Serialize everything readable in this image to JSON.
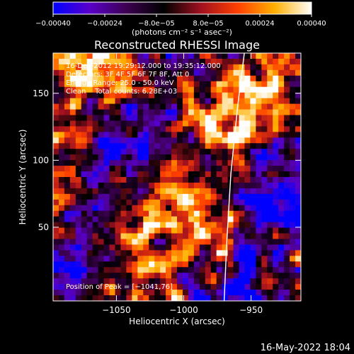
{
  "chart_data": {
    "type": "heatmap",
    "title": "Reconstructed RHESSI Image",
    "xlabel": "Heliocentric X (arcsec)",
    "ylabel": "Heliocentric Y (arcsec)",
    "xlim": [
      -1097,
      -913
    ],
    "ylim": [
      -5,
      180
    ],
    "x_ticks": [
      -1050,
      -1000,
      -950
    ],
    "x_tick_labels": [
      "−1050",
      "−1000",
      "−950"
    ],
    "y_ticks": [
      50,
      100,
      150
    ],
    "y_tick_labels": [
      "50",
      "100",
      "150"
    ],
    "colorbar": {
      "range": [
        -0.0004,
        0.0004
      ],
      "ticks": [
        -0.0004,
        -0.00024,
        -8e-05,
        8e-05,
        0.00024,
        0.0004
      ],
      "tick_labels": [
        "−0.00040",
        "−0.00024",
        "−8.0e−05",
        "8.0e−05",
        "0.00024",
        "0.00040"
      ],
      "unit_label": "(photons cm⁻² s⁻¹ asec⁻²)",
      "colormap": [
        "#0000ff",
        "#5a00c8",
        "#3c0050",
        "#000000",
        "#a01020",
        "#ff4000",
        "#ffb000",
        "#ffffff"
      ]
    },
    "annotations": [
      "16-Dec-2012 19:29:12.000 to 19:35:12.000",
      "Detectors: 3F 4F 5F 6F 7F 8F, Att 0",
      "Energy Range: 25.0 - 50.0 keV",
      "Clean    Total counts: 6.28E+03"
    ],
    "peak_label": "Position of Peak = [−1041,76]",
    "peak": [
      -1041,
      76
    ],
    "limb_curve": [
      [
        -970,
        -5
      ],
      [
        -968,
        40
      ],
      [
        -965,
        90
      ],
      [
        -960,
        140
      ],
      [
        -955,
        180
      ]
    ],
    "grid": false,
    "legend": "none"
  },
  "footer": {
    "timestamp": "16-May-2022 18:04"
  }
}
